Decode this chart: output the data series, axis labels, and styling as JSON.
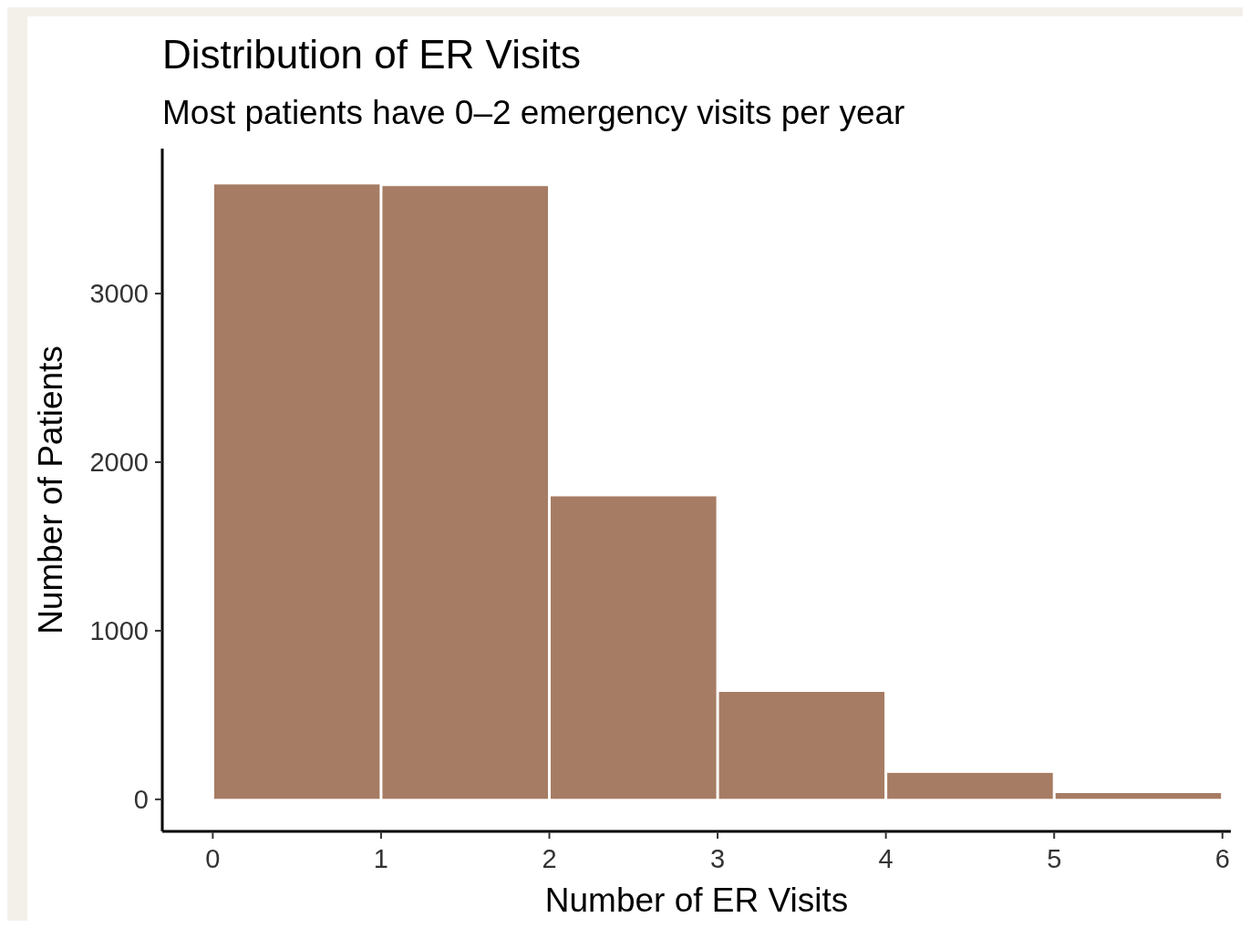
{
  "chart_data": {
    "type": "histogram",
    "title": "Distribution of ER Visits",
    "subtitle": "Most patients have 0–2 emergency visits per year",
    "xlabel": "Number of ER Visits",
    "ylabel": "Number of Patients",
    "bins": [
      0,
      1,
      2,
      3,
      4,
      5,
      6
    ],
    "values": [
      3650,
      3640,
      1800,
      640,
      160,
      40
    ],
    "color": "#a67c64",
    "xlim": [
      -0.3,
      6.05
    ],
    "xticks": [
      0,
      1,
      2,
      3,
      4,
      5,
      6
    ],
    "ylim": [
      -190,
      3860
    ],
    "yticks": [
      0,
      1000,
      2000,
      3000
    ],
    "grid": false
  }
}
